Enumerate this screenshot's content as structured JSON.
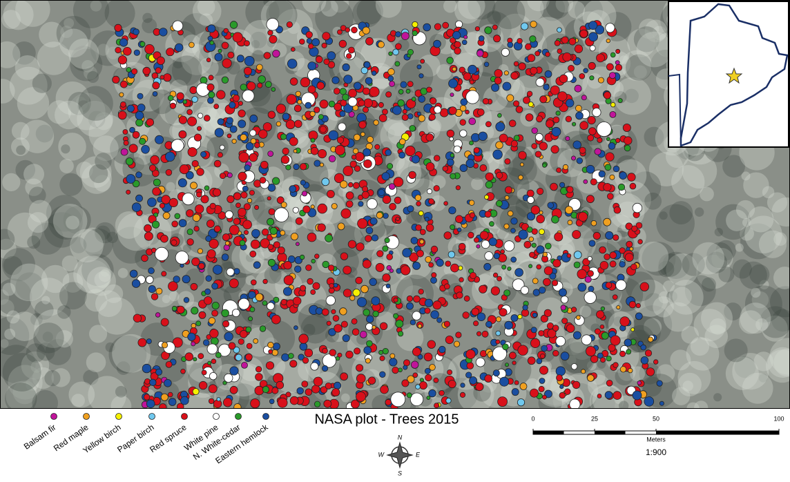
{
  "title": "NASA plot - Trees 2015",
  "legend": [
    {
      "label": "Balsam fir",
      "color": "#c0149a"
    },
    {
      "label": "Red maple",
      "color": "#f0a020"
    },
    {
      "label": "Yellow birch",
      "color": "#f5f000"
    },
    {
      "label": "Paper birch",
      "color": "#70c8ee"
    },
    {
      "label": "Red spruce",
      "color": "#d8101a"
    },
    {
      "label": "White pine",
      "color": "#ffffff"
    },
    {
      "label": "N. White-cedar",
      "color": "#2a9a2a"
    },
    {
      "label": "Eastern hemlock",
      "color": "#1a4ea0"
    }
  ],
  "scale_bar": {
    "range": [
      0,
      100
    ],
    "ticks": [
      0,
      25,
      50,
      100
    ],
    "unit": "Meters"
  },
  "scale_ratio": "1:900",
  "compass": [
    "N",
    "E",
    "S",
    "W"
  ]
}
